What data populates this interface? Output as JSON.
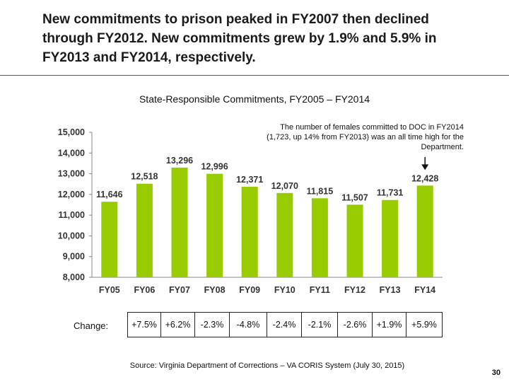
{
  "headline": "New commitments to prison peaked in FY2007 then declined through FY2012.  New commitments grew by 1.9% and 5.9% in FY2013 and FY2014, respectively.",
  "chart_data": {
    "type": "bar",
    "title": "State-Responsible Commitments, FY2005 – FY2014",
    "categories": [
      "FY05",
      "FY06",
      "FY07",
      "FY08",
      "FY09",
      "FY10",
      "FY11",
      "FY12",
      "FY13",
      "FY14"
    ],
    "values": [
      11646,
      12518,
      13296,
      12996,
      12371,
      12070,
      11815,
      11507,
      11731,
      12428
    ],
    "data_labels": [
      "11,646",
      "12,518",
      "13,296",
      "12,996",
      "12,371",
      "12,070",
      "11,815",
      "11,507",
      "11,731",
      "12,428"
    ],
    "ylim": [
      8000,
      15000
    ],
    "yticks": [
      8000,
      9000,
      10000,
      11000,
      12000,
      13000,
      14000,
      15000
    ],
    "ytick_labels": [
      "8,000",
      "9,000",
      "10,000",
      "11,000",
      "12,000",
      "13,000",
      "14,000",
      "15,000"
    ],
    "xlabel": "",
    "ylabel": "",
    "grid": false,
    "bar_color": "#99cc00",
    "annotation": {
      "text": "The number of  females committed to DOC in FY2014 (1,723, up 14% from FY2013) was an all time high for the Department.",
      "points_to": "FY14"
    }
  },
  "change": {
    "label": "Change:",
    "values": [
      "+7.5%",
      "+6.2%",
      "-2.3%",
      "-4.8%",
      "-2.4%",
      "-2.1%",
      "-2.6%",
      "+1.9%",
      "+5.9%"
    ]
  },
  "source": "Source:  Virginia Department of Corrections – VA CORIS System (July 30, 2015)",
  "page_number": "30"
}
